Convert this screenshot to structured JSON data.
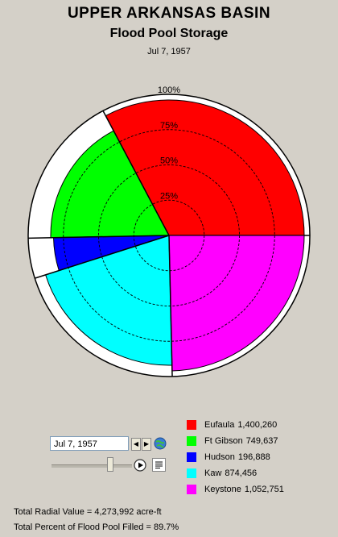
{
  "header": {
    "title": "UPPER ARKANSAS BASIN",
    "subtitle": "Flood Pool Storage",
    "date": "Jul 7, 1957"
  },
  "chart_data": {
    "type": "pie",
    "subtype": "polar-area",
    "title": "UPPER ARKANSAS BASIN",
    "subtitle": "Flood Pool Storage",
    "date_label": "Jul 7, 1957",
    "ring_labels": [
      "25%",
      "50%",
      "75%",
      "100%"
    ],
    "rlim": [
      0,
      100
    ],
    "grid": true,
    "slices": [
      {
        "name": "Eufaula",
        "value": 1400260,
        "percent_full": 96,
        "color": "#ff0000"
      },
      {
        "name": "Ft Gibson",
        "value": 749637,
        "percent_full": 84,
        "color": "#00ff00"
      },
      {
        "name": "Hudson",
        "value": 196888,
        "percent_full": 82,
        "color": "#0000ff"
      },
      {
        "name": "Kaw",
        "value": 874456,
        "percent_full": 92,
        "color": "#00ffff"
      },
      {
        "name": "Keystone",
        "value": 1052751,
        "percent_full": 96,
        "color": "#ff00ff"
      }
    ]
  },
  "legend": {
    "items": [
      {
        "name": "Eufaula",
        "value": "1,400,260",
        "color": "#ff0000"
      },
      {
        "name": "Ft Gibson",
        "value": "749,637",
        "color": "#00ff00"
      },
      {
        "name": "Hudson",
        "value": "196,888",
        "color": "#0000ff"
      },
      {
        "name": "Kaw",
        "value": "874,456",
        "color": "#00ffff"
      },
      {
        "name": "Keystone",
        "value": "1,052,751",
        "color": "#ff00ff"
      }
    ]
  },
  "controls": {
    "date_value": "Jul 7, 1957",
    "prev_icon": "triangle-left-icon",
    "next_icon": "triangle-right-icon",
    "globe_icon": "globe-icon",
    "play_icon": "play-icon",
    "report_icon": "document-icon",
    "slider_position": 0.72
  },
  "footer": {
    "total_radial": "Total Radial Value =  4,273,992 acre-ft",
    "total_percent": "Total Percent of Flood Pool Filled =  89.7%"
  }
}
